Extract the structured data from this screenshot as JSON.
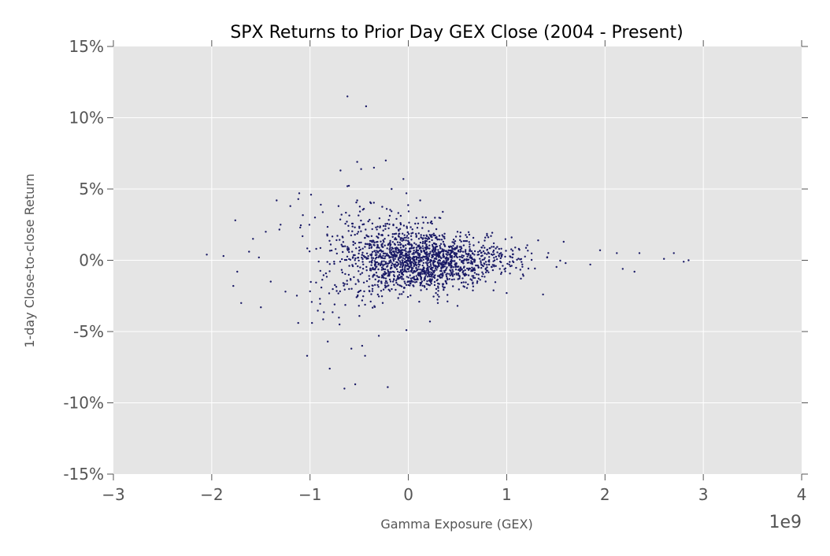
{
  "chart_data": {
    "type": "scatter",
    "title": "SPX Returns to Prior Day GEX Close (2004 - Present)",
    "xlabel": "Gamma Exposure (GEX)",
    "ylabel": "1-day Close-to-close Return",
    "x_offset_label": "1e9",
    "xlim": [
      -3,
      4
    ],
    "ylim": [
      -15,
      15
    ],
    "x_ticks": [
      -3,
      -2,
      -1,
      0,
      1,
      2,
      3,
      4
    ],
    "x_tick_labels": [
      "−3",
      "−2",
      "−1",
      "0",
      "1",
      "2",
      "3",
      "4"
    ],
    "y_ticks": [
      15,
      10,
      5,
      0,
      -5,
      -10,
      -15
    ],
    "y_tick_labels": [
      "15%",
      "10%",
      "5%",
      "0%",
      "-5%",
      "-10%",
      "-15%"
    ],
    "grid": true,
    "marker_color": "#1a1a66",
    "background_color": "#e5e5e5",
    "series": [
      {
        "points": [
          [
            -0.62,
            11.5
          ],
          [
            -0.43,
            10.8
          ],
          [
            -0.23,
            7.0
          ],
          [
            -0.52,
            6.9
          ],
          [
            -0.48,
            6.4
          ],
          [
            -0.69,
            6.3
          ],
          [
            -0.35,
            6.5
          ],
          [
            -0.05,
            5.7
          ],
          [
            -0.62,
            5.2
          ],
          [
            -0.17,
            5.0
          ],
          [
            -0.02,
            4.7
          ],
          [
            -1.11,
            4.7
          ],
          [
            -0.99,
            4.6
          ],
          [
            -1.34,
            4.2
          ],
          [
            -0.52,
            4.2
          ],
          [
            -0.38,
            4.0
          ],
          [
            0.12,
            4.2
          ],
          [
            -0.89,
            3.9
          ],
          [
            -0.71,
            3.8
          ],
          [
            -1.2,
            3.8
          ],
          [
            -0.22,
            3.6
          ],
          [
            0.35,
            3.4
          ],
          [
            -1.76,
            2.8
          ],
          [
            -0.95,
            3.0
          ],
          [
            -0.68,
            3.2
          ],
          [
            -1.3,
            2.5
          ],
          [
            -1.45,
            2.0
          ],
          [
            -1.58,
            1.5
          ],
          [
            -1.1,
            2.3
          ],
          [
            0.5,
            2.0
          ],
          [
            0.62,
            1.8
          ],
          [
            0.84,
            1.7
          ],
          [
            1.05,
            1.6
          ],
          [
            1.32,
            1.4
          ],
          [
            1.58,
            1.3
          ],
          [
            1.95,
            0.7
          ],
          [
            2.12,
            0.5
          ],
          [
            2.35,
            0.5
          ],
          [
            2.6,
            0.1
          ],
          [
            2.7,
            0.5
          ],
          [
            2.85,
            0.0
          ],
          [
            2.8,
            -0.1
          ],
          [
            2.3,
            -0.8
          ],
          [
            2.18,
            -0.6
          ],
          [
            1.85,
            -0.3
          ],
          [
            1.6,
            -0.2
          ],
          [
            1.37,
            -2.4
          ],
          [
            1.0,
            -2.3
          ],
          [
            0.5,
            -3.2
          ],
          [
            -2.05,
            0.4
          ],
          [
            -1.88,
            0.3
          ],
          [
            -1.74,
            -0.8
          ],
          [
            -1.78,
            -1.8
          ],
          [
            -1.7,
            -3.0
          ],
          [
            -1.5,
            -3.3
          ],
          [
            -1.12,
            -4.4
          ],
          [
            -0.98,
            -4.4
          ],
          [
            -1.03,
            -6.7
          ],
          [
            -0.82,
            -5.7
          ],
          [
            -0.8,
            -7.6
          ],
          [
            -0.65,
            -9.0
          ],
          [
            -0.54,
            -8.7
          ],
          [
            -0.21,
            -8.9
          ],
          [
            -0.58,
            -6.2
          ],
          [
            -0.47,
            -6.0
          ],
          [
            -0.44,
            -6.7
          ],
          [
            -0.3,
            -5.3
          ],
          [
            0.22,
            -4.3
          ],
          [
            -0.02,
            -4.9
          ],
          [
            -0.7,
            -4.5
          ],
          [
            -1.4,
            -1.5
          ],
          [
            -1.25,
            -2.2
          ],
          [
            -0.9,
            -2.7
          ],
          [
            -0.75,
            -3.1
          ],
          [
            0.3,
            -3.0
          ],
          [
            -1.62,
            0.6
          ],
          [
            -1.52,
            0.2
          ]
        ],
        "core": {
          "count": 1700,
          "x_mean": 0.1,
          "x_sd": 0.45,
          "y_sd": 0.85
        }
      }
    ]
  }
}
